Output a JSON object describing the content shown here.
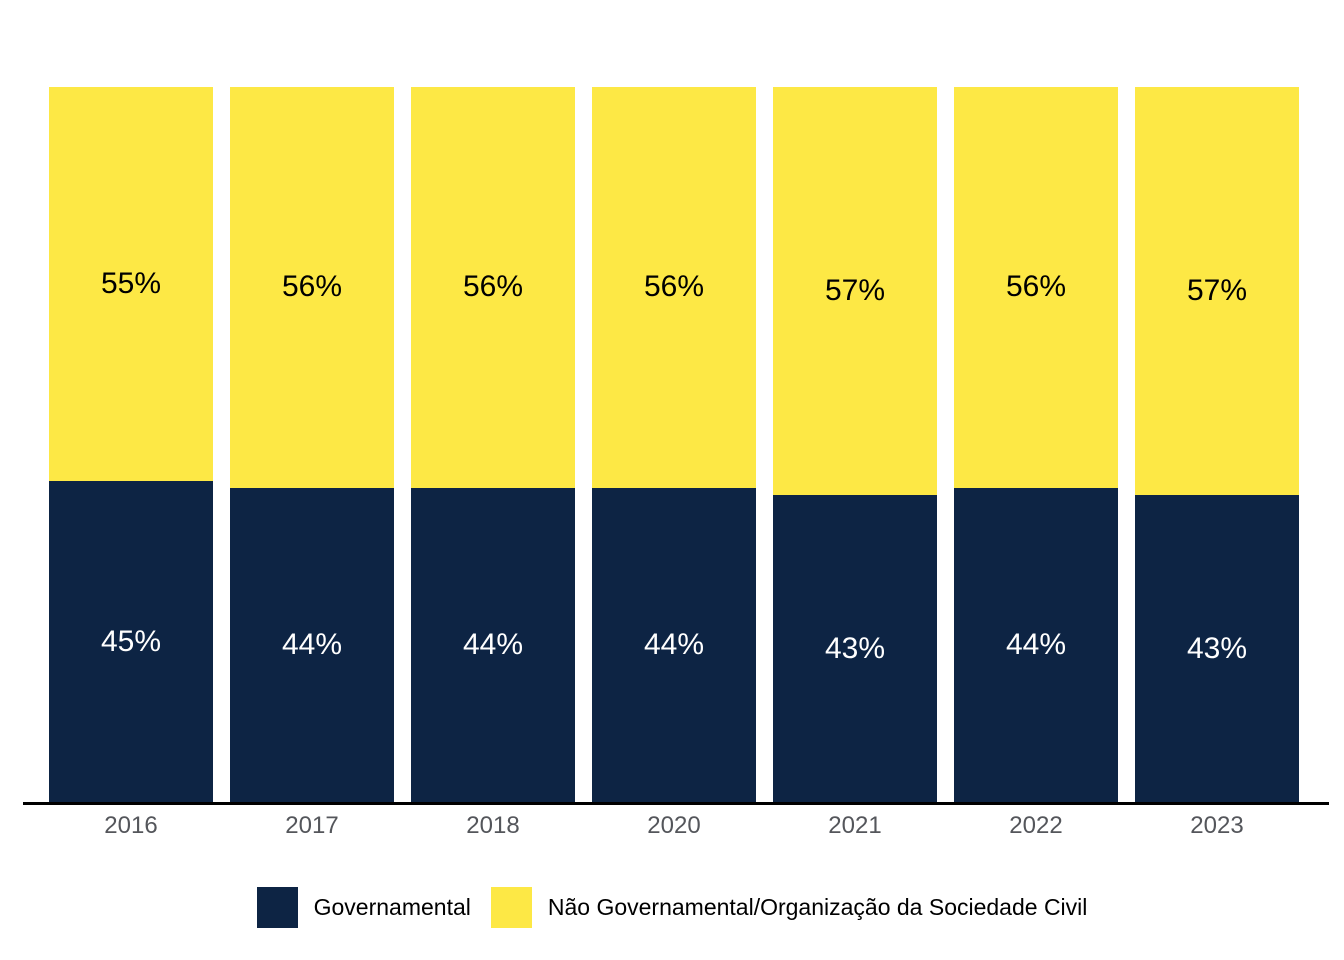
{
  "chart_data": {
    "type": "bar",
    "stacked": true,
    "orientation": "vertical",
    "unit": "%",
    "title": "",
    "xlabel": "",
    "ylabel": "",
    "ylim": [
      0,
      100
    ],
    "grid": false,
    "legend_position": "bottom",
    "categories": [
      "2016",
      "2017",
      "2018",
      "2020",
      "2021",
      "2022",
      "2023"
    ],
    "series": [
      {
        "name": "Governamental",
        "color": "#0d2444",
        "label_color": "#ffffff",
        "values": [
          45,
          44,
          44,
          44,
          43,
          44,
          43
        ]
      },
      {
        "name": "Não Governamental/Organização da Sociedade Civil",
        "color": "#fde845",
        "label_color": "#000000",
        "values": [
          55,
          56,
          56,
          56,
          57,
          56,
          57
        ]
      }
    ],
    "axis_line_color": "#000000",
    "tick_label_color": "#54565b"
  }
}
